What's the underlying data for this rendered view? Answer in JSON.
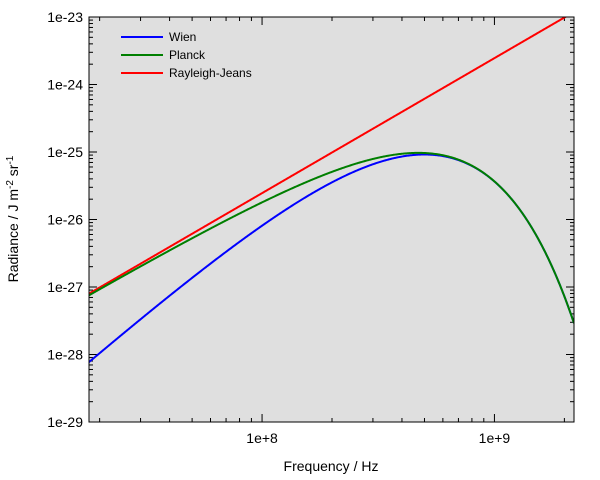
{
  "chart_data": {
    "type": "line",
    "title": "",
    "xlabel": "Frequency / Hz",
    "ylabel": {
      "prefix": "Radiance / J m",
      "exp1": "-2",
      "mid": " sr",
      "exp2": "-1"
    },
    "xscale": "log",
    "yscale": "log",
    "xlim": [
      18000000,
      2200000000
    ],
    "ylim": [
      1e-29,
      1e-23
    ],
    "x_ticks": [
      {
        "value": 100000000,
        "label": "1e+8"
      },
      {
        "value": 1000000000,
        "label": "1e+9"
      }
    ],
    "y_ticks": [
      {
        "value": 1e-29,
        "label": "1e-29"
      },
      {
        "value": 1e-28,
        "label": "1e-28"
      },
      {
        "value": 1e-27,
        "label": "1e-27"
      },
      {
        "value": 1e-26,
        "label": "1e-26"
      },
      {
        "value": 1e-25,
        "label": "1e-25"
      },
      {
        "value": 1e-24,
        "label": "1e-24"
      },
      {
        "value": 1e-23,
        "label": "1e-23"
      }
    ],
    "grid": false,
    "legend_position": "top-left",
    "background_color": "#dfdfdf",
    "series": [
      {
        "name": "Wien",
        "color": "#0000ff",
        "model": "wien",
        "temperature_K": 0.008
      },
      {
        "name": "Planck",
        "color": "#007f00",
        "model": "planck",
        "temperature_K": 0.008
      },
      {
        "name": "Rayleigh-Jeans",
        "color": "#ff0000",
        "model": "rayleigh-jeans",
        "temperature_K": 0.008
      }
    ]
  }
}
